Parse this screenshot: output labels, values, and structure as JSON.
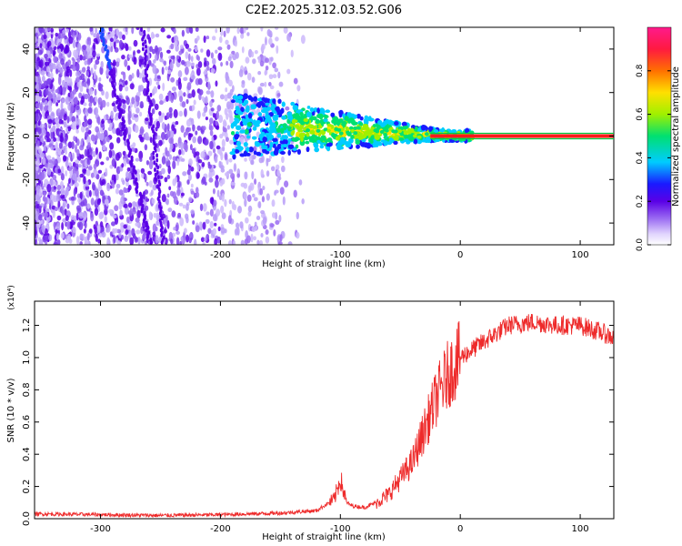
{
  "title": "C2E2.2025.312.03.52.G06",
  "colors": {
    "snr_line": "#ee2b2b",
    "carrier_band": "#ff1a1a",
    "carrier_edge": "#00cc44",
    "noise_dark": "#5a00e6",
    "noise_light": "#cdb8fb"
  },
  "chart_data": [
    {
      "type": "heatmap",
      "name": "spectrogram",
      "xlabel": "Height of straight line (km)",
      "ylabel": "Frequency (Hz)",
      "xlim": [
        -355,
        128
      ],
      "ylim": [
        -50,
        50
      ],
      "xticks": [
        -300,
        -200,
        -100,
        0,
        100
      ],
      "xtick_labels": [
        "-300",
        "-200",
        "-100",
        "0",
        "100"
      ],
      "yticks": [
        -40,
        -20,
        0,
        20,
        40
      ],
      "ytick_labels": [
        "-40",
        "-20",
        "0",
        "20",
        "40"
      ],
      "carrier": {
        "x_start": -25,
        "x_end": 128,
        "frequency": 0
      },
      "colorbar": {
        "label": "Normalized spectral amplitude",
        "range": [
          0,
          1
        ],
        "ticks": [
          0.0,
          0.2,
          0.4,
          0.6,
          0.8
        ],
        "tick_labels": [
          "0.0",
          "0.2",
          "0.4",
          "0.6",
          "0.8"
        ],
        "colormap": [
          "#ffffff",
          "#e0d4fd",
          "#5a00e6",
          "#1a1aff",
          "#00ccff",
          "#00e070",
          "#a0f000",
          "#ffe000",
          "#ff7000",
          "#ff1a40",
          "#ff1a8c"
        ]
      },
      "grid": false
    },
    {
      "type": "line",
      "name": "snr",
      "xlabel": "Height of straight line (km)",
      "ylabel": "SNR (10 * v/v)",
      "scale_label": "(x10⁴)",
      "xlim": [
        -355,
        128
      ],
      "ylim": [
        0,
        1.35
      ],
      "xticks": [
        -300,
        -200,
        -100,
        0,
        100
      ],
      "xtick_labels": [
        "-300",
        "-200",
        "-100",
        "0",
        "100"
      ],
      "yticks": [
        0,
        0.2,
        0.4,
        0.6,
        0.8,
        1.0,
        1.2
      ],
      "ytick_labels": [
        "0.0",
        "0.2",
        "0.4",
        "0.6",
        "0.8",
        "1.0",
        "1.2"
      ],
      "series_x": [
        -355,
        -300,
        -250,
        -200,
        -150,
        -120,
        -105,
        -100,
        -95,
        -90,
        -80,
        -70,
        -60,
        -50,
        -40,
        -30,
        -20,
        -10,
        0,
        10,
        20,
        30,
        40,
        60,
        80,
        100,
        120,
        128
      ],
      "series_y": [
        0.03,
        0.025,
        0.02,
        0.025,
        0.035,
        0.05,
        0.12,
        0.25,
        0.1,
        0.08,
        0.07,
        0.1,
        0.15,
        0.25,
        0.35,
        0.55,
        0.75,
        0.9,
        1.0,
        1.05,
        1.1,
        1.15,
        1.2,
        1.22,
        1.2,
        1.2,
        1.15,
        1.12
      ],
      "grid": false
    }
  ]
}
